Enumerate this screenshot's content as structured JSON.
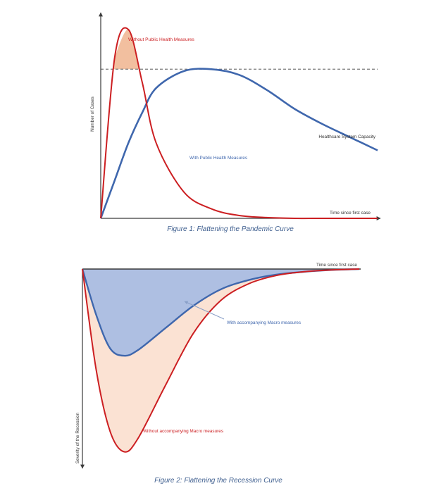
{
  "colors": {
    "red": "#cc1f22",
    "blue": "#3f67ad",
    "red_fill": "#f0b48e",
    "red_fill_light": "#fbe2d3",
    "blue_fill": "#aebfe2",
    "axis": "#3a3a3a",
    "capacity_line": "#7a7a7a",
    "caption": "#3f5f8f"
  },
  "figure1": {
    "caption": "Figure 1: Flattening the Pandemic Curve",
    "y_axis_label": "Number of Cases",
    "x_axis_label": "Time since first case",
    "capacity_label": "Healthcare System Capacity",
    "red_curve_label": "Without Public Health Measures",
    "blue_curve_label": "With Public Health Measures"
  },
  "figure2": {
    "caption": "Figure 2: Flattening the Recession Curve",
    "y_axis_label": "Severity of the Recession",
    "x_axis_label": "Time since first case",
    "blue_curve_label": "With accompanying Macro measures",
    "red_curve_label": "Without accompanying Macro measures"
  },
  "chart_data": [
    {
      "type": "line",
      "title": "Figure 1: Flattening the Pandemic Curve",
      "xlabel": "Time since first case",
      "ylabel": "Number of Cases",
      "x": [
        0,
        0.05,
        0.1,
        0.15,
        0.2,
        0.3,
        0.4,
        0.5,
        0.6,
        0.7,
        0.8,
        0.9,
        1.0
      ],
      "series": [
        {
          "name": "Without Public Health Measures",
          "values": [
            0,
            0.85,
            1.0,
            0.72,
            0.4,
            0.14,
            0.05,
            0.015,
            0.004,
            0,
            0,
            0,
            0
          ]
        },
        {
          "name": "With Public Health Measures",
          "values": [
            0,
            0.2,
            0.4,
            0.56,
            0.69,
            0.78,
            0.79,
            0.76,
            0.68,
            0.58,
            0.5,
            0.43,
            0.36
          ]
        }
      ],
      "reference_line": {
        "name": "Healthcare System Capacity",
        "value": 0.79
      },
      "ylim": [
        0,
        1
      ]
    },
    {
      "type": "area",
      "title": "Figure 2: Flattening the Recession Curve",
      "xlabel": "Time since first case",
      "ylabel": "Severity of the Recession",
      "x": [
        0,
        0.05,
        0.1,
        0.15,
        0.2,
        0.3,
        0.4,
        0.5,
        0.6,
        0.7,
        0.8,
        0.9,
        1.0
      ],
      "series": [
        {
          "name": "With accompanying Macro measures",
          "values": [
            0,
            0.25,
            0.43,
            0.47,
            0.44,
            0.32,
            0.2,
            0.11,
            0.06,
            0.03,
            0.015,
            0.005,
            0
          ]
        },
        {
          "name": "Without accompanying Macro measures",
          "values": [
            0,
            0.55,
            0.88,
            0.99,
            0.92,
            0.63,
            0.35,
            0.17,
            0.08,
            0.035,
            0.015,
            0.005,
            0
          ]
        }
      ],
      "ylim": [
        0,
        1
      ]
    }
  ]
}
